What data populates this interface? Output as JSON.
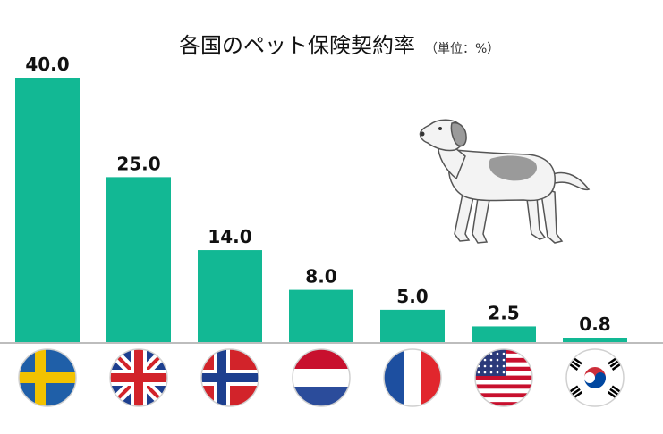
{
  "chart_data": {
    "type": "bar",
    "title": "各国のペット保険契約率",
    "unit_note": "（単位：%）",
    "categories": [
      "Sweden",
      "United Kingdom",
      "Norway",
      "Netherlands",
      "France",
      "United States",
      "South Korea"
    ],
    "values": [
      40.0,
      25.0,
      14.0,
      8.0,
      5.0,
      2.5,
      0.8
    ],
    "value_labels": [
      "40.0",
      "25.0",
      "14.0",
      "8.0",
      "5.0",
      "2.5",
      "0.8"
    ],
    "category_icons": [
      "sweden-flag-icon",
      "uk-flag-icon",
      "norway-flag-icon",
      "netherlands-flag-icon",
      "france-flag-icon",
      "usa-flag-icon",
      "korea-flag-icon"
    ],
    "xlabel": "",
    "ylabel": "",
    "ylim": [
      0,
      40
    ],
    "grid": false,
    "legend": "none",
    "bar_color": "#12b894",
    "baseline_color": "#bdbdbd",
    "decoration": "dog-illustration"
  }
}
